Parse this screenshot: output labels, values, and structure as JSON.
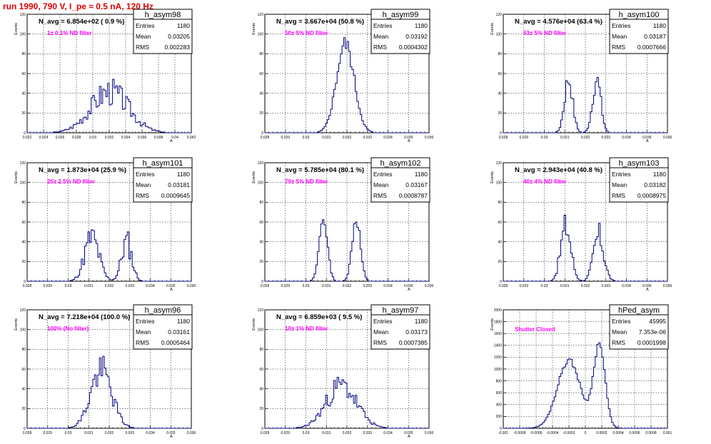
{
  "page": {
    "title": "run 1990,   790 V, I_pe ≈ 0.5 nA, 120 Hz"
  },
  "chart_data": [
    {
      "type": "bar",
      "stats": {
        "name": "h_asym98",
        "entries": "1180",
        "mean": "0.03205",
        "rms": "0.002283"
      },
      "navg": "N_avg = 6.854e+02 ( 0.9 %)",
      "filter": "1± 0.1% ND filter",
      "ylabel": "Events",
      "xlabel": "A",
      "xlim": [
        0.022,
        0.042
      ],
      "ylim": [
        0,
        120
      ],
      "xticks": [
        "0.022",
        "0.024",
        "0.026",
        "0.028",
        "0.03",
        "0.032",
        "0.034",
        "0.036",
        "0.038",
        "0.04",
        "0.042"
      ],
      "yticks": [
        "0",
        "20",
        "40",
        "60",
        "80",
        "100",
        "120"
      ],
      "dist": {
        "peaks": [
          {
            "mu": 0.03205,
            "sigma": 0.0023,
            "h": 42
          }
        ],
        "noise": 0.35,
        "seed": 3,
        "bins": 100
      }
    },
    {
      "type": "bar",
      "stats": {
        "name": "h_asym99",
        "entries": "1180",
        "mean": "0.03192",
        "rms": "0.0004302"
      },
      "navg": "N_avg = 3.667e+04 (50.8 %)",
      "filter": "50± 5% ND filter",
      "ylabel": "Events",
      "xlabel": "A",
      "xlim": [
        0.028,
        0.036
      ],
      "ylim": [
        0,
        120
      ],
      "xticks": [
        "0.028",
        "0.029",
        "0.03",
        "0.031",
        "0.032",
        "0.033",
        "0.034",
        "0.035",
        "0.036"
      ],
      "yticks": [
        "0",
        "20",
        "40",
        "60",
        "80",
        "100",
        "120"
      ],
      "dist": {
        "peaks": [
          {
            "mu": 0.03192,
            "sigma": 0.00043,
            "h": 90
          }
        ],
        "noise": 0.1,
        "seed": 5,
        "bins": 100
      }
    },
    {
      "type": "bar",
      "stats": {
        "name": "h_asym100",
        "entries": "1180",
        "mean": "0.03187",
        "rms": "0.0007666"
      },
      "navg": "N_avg = 4.576e+04 (63.4 %)",
      "filter": "63± 5% ND filter",
      "ylabel": "Events",
      "xlabel": "A",
      "xlim": [
        0.028,
        0.036
      ],
      "ylim": [
        0,
        120
      ],
      "xticks": [
        "0.028",
        "0.029",
        "0.03",
        "0.031",
        "0.032",
        "0.033",
        "0.034",
        "0.035",
        "0.036"
      ],
      "yticks": [
        "0",
        "20",
        "40",
        "60",
        "80",
        "100",
        "120"
      ],
      "dist": {
        "peaks": [
          {
            "mu": 0.03118,
            "sigma": 0.0002,
            "h": 54
          },
          {
            "mu": 0.03255,
            "sigma": 0.0002,
            "h": 54
          }
        ],
        "noise": 0.2,
        "seed": 7,
        "bins": 100
      }
    },
    {
      "type": "bar",
      "stats": {
        "name": "h_asym101",
        "entries": "1180",
        "mean": "0.03181",
        "rms": "0.0009645"
      },
      "navg": "N_avg = 1.873e+04 (25.9 %)",
      "filter": "25± 2.5% ND filter",
      "ylabel": "Events",
      "xlabel": "A",
      "xlim": [
        0.028,
        0.036
      ],
      "ylim": [
        0,
        120
      ],
      "xticks": [
        "0.028",
        "0.029",
        "0.03",
        "0.031",
        "0.032",
        "0.033",
        "0.034",
        "0.035",
        "0.036"
      ],
      "yticks": [
        "0",
        "20",
        "40",
        "60",
        "80",
        "100",
        "120"
      ],
      "dist": {
        "peaks": [
          {
            "mu": 0.03115,
            "sigma": 0.00035,
            "h": 44
          },
          {
            "mu": 0.03285,
            "sigma": 0.00025,
            "h": 40
          }
        ],
        "noise": 0.35,
        "seed": 11,
        "bins": 100
      }
    },
    {
      "type": "bar",
      "stats": {
        "name": "h_asym102",
        "entries": "1180",
        "mean": "0.03167",
        "rms": "0.0008787"
      },
      "navg": "N_avg = 5.785e+04 (80.1 %)",
      "filter": "79± 5% ND filter",
      "ylabel": "Events",
      "xlabel": "A",
      "xlim": [
        0.028,
        0.036
      ],
      "ylim": [
        0,
        120
      ],
      "xticks": [
        "0.028",
        "0.029",
        "0.03",
        "0.031",
        "0.032",
        "0.033",
        "0.034",
        "0.035",
        "0.036"
      ],
      "yticks": [
        "0",
        "20",
        "40",
        "60",
        "80",
        "100",
        "120"
      ],
      "dist": {
        "peaks": [
          {
            "mu": 0.03085,
            "sigma": 0.0002,
            "h": 64
          },
          {
            "mu": 0.03245,
            "sigma": 0.0002,
            "h": 64
          }
        ],
        "noise": 0.12,
        "seed": 13,
        "bins": 100
      }
    },
    {
      "type": "bar",
      "stats": {
        "name": "h_asym103",
        "entries": "1180",
        "mean": "0.03182",
        "rms": "0.0008975"
      },
      "navg": "N_avg = 2.943e+04 (40.8 %)",
      "filter": "40± 4% ND filter",
      "ylabel": "Events",
      "xlabel": "A",
      "xlim": [
        0.028,
        0.036
      ],
      "ylim": [
        0,
        120
      ],
      "xticks": [
        "0.028",
        "0.029",
        "0.03",
        "0.031",
        "0.032",
        "0.033",
        "0.034",
        "0.035",
        "0.036"
      ],
      "yticks": [
        "0",
        "20",
        "40",
        "60",
        "80",
        "100",
        "120"
      ],
      "dist": {
        "peaks": [
          {
            "mu": 0.03105,
            "sigma": 0.00025,
            "h": 55
          },
          {
            "mu": 0.03265,
            "sigma": 0.00025,
            "h": 46
          }
        ],
        "noise": 0.3,
        "seed": 17,
        "bins": 100
      }
    },
    {
      "type": "bar",
      "stats": {
        "name": "h_asym96",
        "entries": "1180",
        "mean": "0.03161",
        "rms": "0.0005464"
      },
      "navg": "N_avg = 7.218e+04 (100.0 %)",
      "filter": "100% (No filter)",
      "ylabel": "Events",
      "xlabel": "A",
      "xlim": [
        0.028,
        0.036
      ],
      "ylim": [
        0,
        120
      ],
      "xticks": [
        "0.028",
        "0.029",
        "0.03",
        "0.031",
        "0.032",
        "0.033",
        "0.034",
        "0.035",
        "0.036"
      ],
      "yticks": [
        "0",
        "20",
        "40",
        "60",
        "80",
        "100",
        "120"
      ],
      "dist": {
        "peaks": [
          {
            "mu": 0.03161,
            "sigma": 0.00052,
            "h": 58
          }
        ],
        "noise": 0.3,
        "seed": 19,
        "bins": 100
      }
    },
    {
      "type": "bar",
      "stats": {
        "name": "h_asym97",
        "entries": "1180",
        "mean": "0.03173",
        "rms": "0.0007385"
      },
      "navg": "N_avg = 6.859e+03 ( 9.5 %)",
      "filter": "10± 1% ND filter",
      "ylabel": "Events",
      "xlabel": "A",
      "xlim": [
        0.028,
        0.036
      ],
      "ylim": [
        0,
        120
      ],
      "xticks": [
        "0.028",
        "0.029",
        "0.03",
        "0.031",
        "0.032",
        "0.033",
        "0.034",
        "0.035",
        "0.036"
      ],
      "yticks": [
        "0",
        "20",
        "40",
        "60",
        "80",
        "100",
        "120"
      ],
      "dist": {
        "peaks": [
          {
            "mu": 0.03173,
            "sigma": 0.00074,
            "h": 43
          }
        ],
        "noise": 0.3,
        "seed": 23,
        "bins": 100
      }
    },
    {
      "type": "bar",
      "stats": {
        "name": "hPed_asym",
        "entries": "45995",
        "mean": "7.353e-06",
        "rms": "0.0001998"
      },
      "navg": "",
      "filter": "Shutter Closed",
      "ylabel": "Events",
      "xlabel": "",
      "xlim": [
        -0.001,
        0.001
      ],
      "ylim": [
        0,
        2000
      ],
      "xticks": [
        "-0.001",
        "-0.0008",
        "-0.0006",
        "-0.0004",
        "-0.0002",
        "0",
        "0.0002",
        "0.0004",
        "0.0006",
        "0.0008",
        "0.001"
      ],
      "yticks": [
        "0",
        "200",
        "400",
        "600",
        "800",
        "1000",
        "1200",
        "1400",
        "1600",
        "1800",
        "2000"
      ],
      "dist": {
        "peaks": [
          {
            "mu": -0.0002,
            "sigma": 0.00014,
            "h": 1150
          },
          {
            "mu": 0.00017,
            "sigma": 7e-05,
            "h": 1400
          }
        ],
        "noise": 0.04,
        "seed": 29,
        "bins": 100
      }
    }
  ]
}
